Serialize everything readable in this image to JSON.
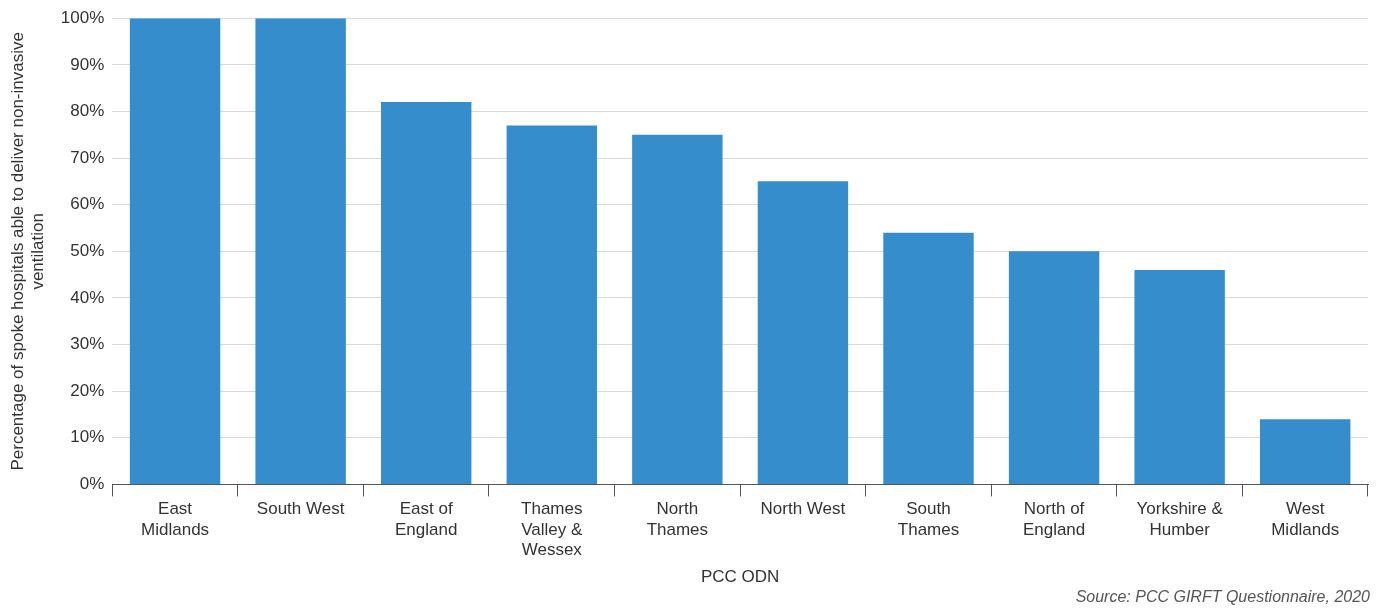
{
  "chart_data": {
    "type": "bar",
    "xlabel": "PCC ODN",
    "ylabel": "Percentage of spoke hospitals able to deliver non-invasive ventilation",
    "categories": [
      "East Midlands",
      "South West",
      "East of England",
      "Thames Valley & Wessex",
      "North Thames",
      "North West",
      "South Thames",
      "North of England",
      "Yorkshire & Humber",
      "West Midlands"
    ],
    "values": [
      100,
      100,
      82,
      77,
      75,
      65,
      54,
      50,
      46,
      14
    ],
    "color": "#358ecb",
    "ylim": [
      0,
      100
    ],
    "yticks": [
      {
        "value": 0,
        "label": "0%"
      },
      {
        "value": 10,
        "label": "10%"
      },
      {
        "value": 20,
        "label": "20%"
      },
      {
        "value": 30,
        "label": "30%"
      },
      {
        "value": 40,
        "label": "40%"
      },
      {
        "value": 50,
        "label": "50%"
      },
      {
        "value": 60,
        "label": "60%"
      },
      {
        "value": 70,
        "label": "70%"
      },
      {
        "value": 80,
        "label": "80%"
      },
      {
        "value": 90,
        "label": "90%"
      },
      {
        "value": 100,
        "label": "100%"
      }
    ],
    "grid": "y",
    "legend": false,
    "annotations": [
      "Source: PCC GIRFT Questionnaire, 2020"
    ]
  }
}
